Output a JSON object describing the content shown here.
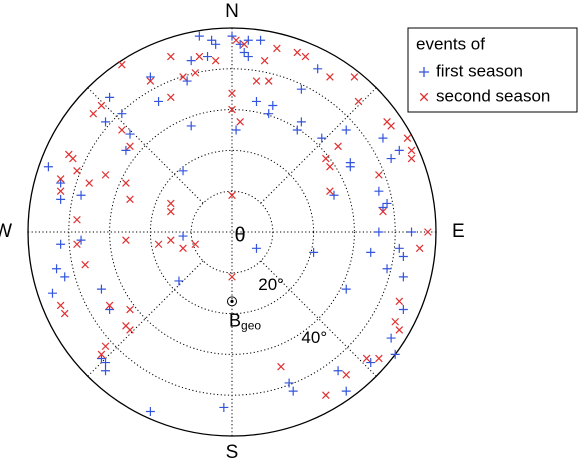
{
  "chart_data": {
    "type": "polar-scatter",
    "rlim": [
      0,
      50
    ],
    "grid_circles": [
      10,
      20,
      30,
      40
    ],
    "rtick_labels": [
      {
        "value": 20,
        "label": "20°"
      },
      {
        "value": 40,
        "label": "40°"
      }
    ],
    "xlim": [
      -50,
      50
    ],
    "ylim": [
      -50,
      50
    ],
    "directions": {
      "N": "N",
      "E": "E",
      "S": "S",
      "W": "W"
    },
    "center_label": "θ",
    "b_geo": {
      "label": "B",
      "subscript": "geo",
      "x": 0,
      "y": -17
    },
    "legend_title": "events of",
    "legend_position": "upper right",
    "series": [
      {
        "name": "first season",
        "color": "#3355dd",
        "marker": "+",
        "x": [
          -8,
          -5,
          -4,
          0,
          2,
          4,
          7,
          3,
          4,
          -11,
          -10,
          -6,
          -20,
          -18,
          -30,
          -31,
          -27,
          -25,
          -26,
          -45,
          -42,
          -42,
          -37,
          -37,
          -42,
          -43,
          -44,
          -41,
          -32,
          -30,
          -32,
          -31,
          -31,
          -20,
          -2,
          -13,
          -12,
          -12,
          -10,
          6,
          10,
          17,
          21,
          16,
          22,
          28,
          29,
          25,
          29,
          37,
          39,
          36,
          38,
          41,
          44,
          41,
          34,
          28,
          42,
          39,
          40,
          34,
          26,
          28,
          15,
          14,
          6,
          9,
          1,
          20,
          17,
          37,
          38,
          36,
          42,
          42
        ],
        "values": [
          48,
          47,
          46,
          48,
          46,
          47,
          47,
          44,
          43,
          37,
          42,
          43,
          38,
          32,
          33,
          27,
          29,
          24,
          20,
          16,
          12,
          8,
          9,
          -2,
          -3,
          -9,
          -15,
          -11,
          -14,
          -19,
          -31,
          -34,
          -32,
          -44,
          -43,
          -12,
          -1,
          15,
          26,
          32,
          31,
          35,
          40,
          25,
          23,
          25,
          17,
          9,
          16,
          23,
          18,
          10,
          7,
          20,
          0,
          -4,
          -5,
          -14,
          -19,
          -26,
          -30,
          -32,
          -34,
          -39,
          -39,
          -37,
          -4,
          29,
          25,
          -5,
          27,
          6,
          -9,
          0,
          -6,
          -11
        ]
      },
      {
        "name": "second season",
        "color": "#e03030",
        "marker": "x",
        "x": [
          -15,
          -8,
          -4,
          1,
          3,
          -9,
          -12,
          -15,
          -20,
          -27,
          -32,
          -34,
          -27,
          -25,
          -39,
          -40,
          -38,
          -42,
          -42,
          -35,
          -31,
          -26,
          -38,
          -38,
          -36,
          -42,
          -41,
          -30,
          -25,
          -26,
          -25,
          -31,
          -32,
          -26,
          -18,
          -12,
          -9,
          -25,
          -15,
          -15,
          0,
          0,
          2,
          8,
          11,
          16,
          24,
          30,
          31,
          23,
          24,
          26,
          38,
          39,
          43,
          44,
          44,
          36,
          37,
          48,
          46,
          41,
          40,
          41,
          33,
          36,
          28,
          23,
          12,
          24,
          6,
          9,
          0,
          0,
          -15,
          18
        ],
        "values": [
          43,
          43,
          42,
          47,
          46,
          39,
          38,
          33,
          37,
          41,
          31,
          29,
          25,
          21,
          18,
          19,
          15,
          13,
          10,
          12,
          14,
          12,
          3,
          -3,
          -8,
          -18,
          -20,
          -18,
          -19,
          -23,
          -24,
          -28,
          -30,
          -2,
          -3,
          -4,
          -3,
          8,
          5,
          -2,
          34,
          30,
          27,
          42,
          45,
          44,
          38,
          38,
          32,
          18,
          16,
          21,
          27,
          26,
          23,
          20,
          18,
          14,
          5,
          0,
          -4,
          -17,
          -22,
          -24,
          -31,
          -31,
          -35,
          -40,
          -33,
          10,
          37,
          37,
          9,
          -11,
          7,
          43
        ]
      }
    ]
  }
}
